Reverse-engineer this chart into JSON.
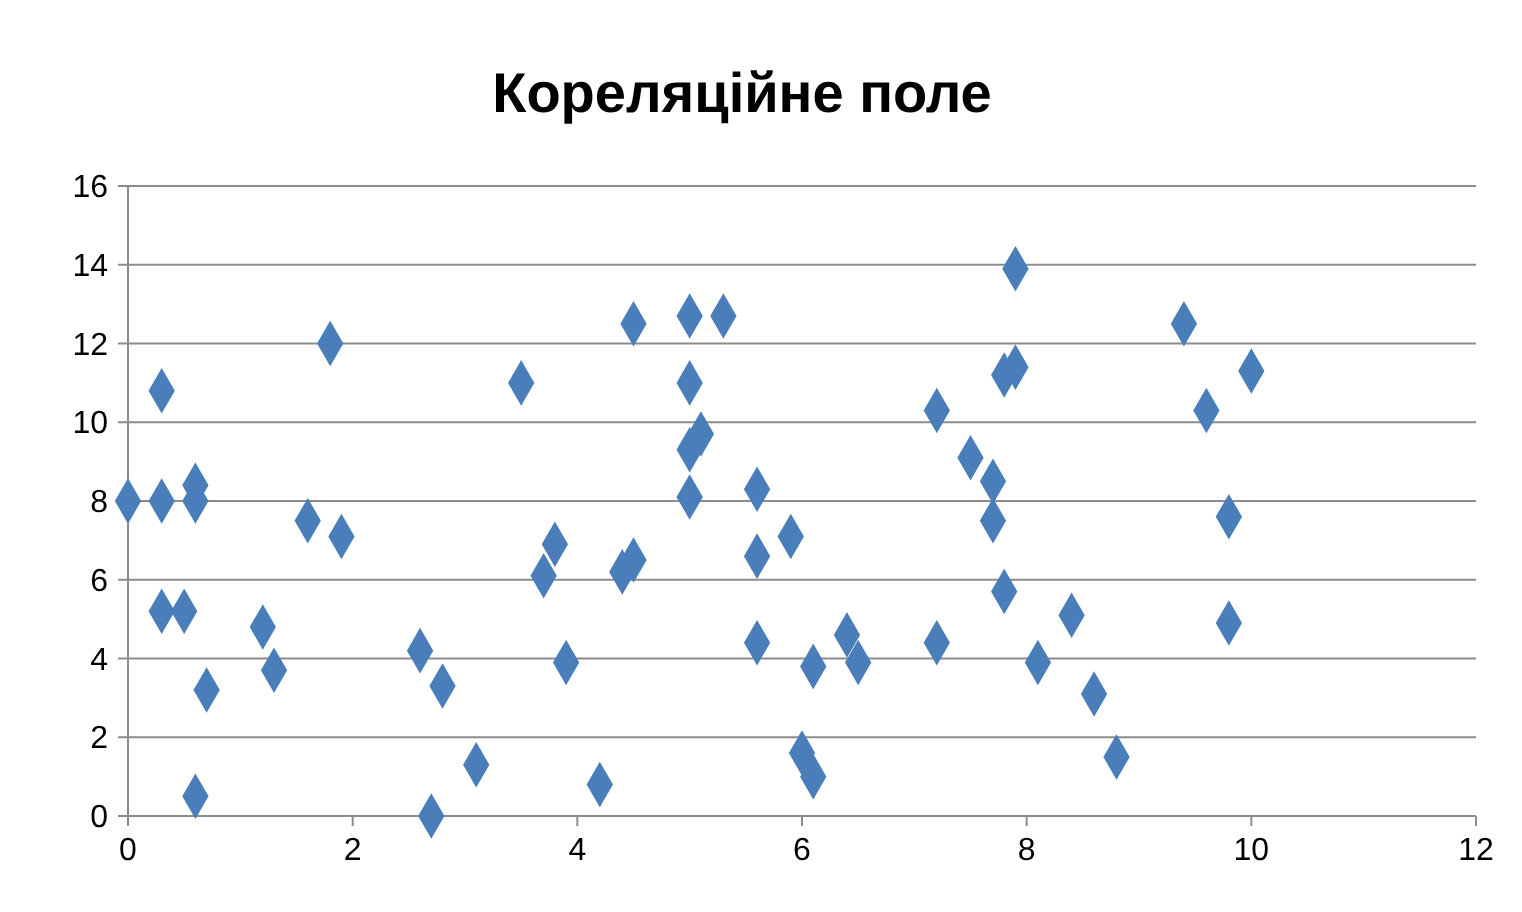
{
  "chart_data": {
    "type": "scatter",
    "title": "Кореляційне поле",
    "marker": "diamond",
    "grid": "y",
    "xlim": [
      0,
      12
    ],
    "xticks": [
      0,
      2,
      4,
      6,
      8,
      10,
      12
    ],
    "ylim": [
      0,
      16
    ],
    "yticks": [
      0,
      2,
      4,
      6,
      8,
      10,
      12,
      14,
      16
    ],
    "series": [
      {
        "color": "#4a7ebb",
        "x": [
          0,
          0.3,
          0.3,
          0.3,
          0.5,
          0.6,
          0.6,
          0.6,
          0.7,
          1.2,
          1.3,
          1.6,
          1.9,
          1.8,
          2.6,
          2.8,
          2.7,
          3.1,
          3.5,
          3.7,
          3.8,
          3.9,
          4.2,
          4.4,
          4.5,
          4.5,
          5.0,
          5.3,
          5.0,
          5.0,
          5.1,
          5.0,
          5.6,
          5.6,
          5.9,
          5.6,
          6.0,
          6.1,
          6.1,
          6.4,
          6.5,
          7.2,
          7.2,
          7.5,
          7.7,
          7.7,
          7.8,
          7.8,
          7.9,
          7.9,
          8.1,
          8.4,
          8.6,
          8.8,
          9.4,
          9.6,
          9.8,
          9.8,
          10.0
        ],
        "values": [
          8.0,
          10.8,
          8.0,
          5.2,
          5.2,
          8.4,
          8.0,
          0.5,
          3.2,
          4.8,
          3.7,
          7.5,
          7.1,
          12.0,
          4.2,
          3.3,
          0.0,
          1.3,
          11.0,
          6.1,
          6.9,
          3.9,
          0.8,
          6.2,
          6.5,
          12.5,
          12.7,
          12.7,
          11.0,
          9.3,
          9.7,
          8.1,
          8.3,
          6.6,
          7.1,
          4.4,
          1.6,
          1.0,
          3.8,
          4.6,
          3.9,
          4.4,
          10.3,
          9.1,
          8.5,
          7.5,
          5.7,
          11.2,
          11.4,
          13.9,
          3.9,
          5.1,
          3.1,
          1.5,
          12.5,
          10.3,
          7.6,
          4.9,
          11.3
        ]
      }
    ]
  }
}
